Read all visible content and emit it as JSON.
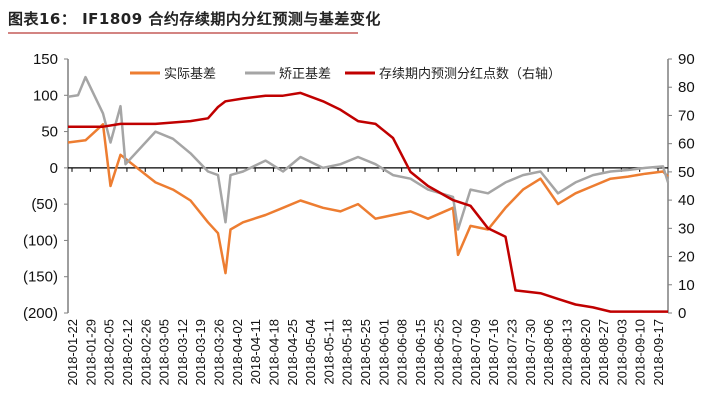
{
  "title": "图表16： IF1809 合约存续期内分红预测与基差变化",
  "chart_data": {
    "type": "line",
    "title": "IF1809 合约存续期内分红预测与基差变化",
    "xlabel": "",
    "ylabel": "",
    "y_left": {
      "ticks": [
        "150",
        "100",
        "50",
        "0",
        "(50)",
        "(100)",
        "(150)",
        "(200)"
      ],
      "range": [
        -200,
        150
      ]
    },
    "y_right": {
      "ticks": [
        "90",
        "80",
        "70",
        "60",
        "50",
        "40",
        "30",
        "20",
        "10",
        "0"
      ],
      "range": [
        0,
        90
      ]
    },
    "x_ticks": [
      "2018-01-22",
      "2018-01-29",
      "2018-02-05",
      "2018-02-12",
      "2018-02-26",
      "2018-03-05",
      "2018-03-12",
      "2018-03-19",
      "2018-03-26",
      "2018-04-02",
      "2018-04-11",
      "2018-04-18",
      "2018-04-25",
      "2018-05-04",
      "2018-05-11",
      "2018-05-18",
      "2018-05-25",
      "2018-06-01",
      "2018-06-08",
      "2018-06-15",
      "2018-06-25",
      "2018-07-02",
      "2018-07-09",
      "2018-07-16",
      "2018-07-23",
      "2018-07-30",
      "2018-08-06",
      "2018-08-13",
      "2018-08-20",
      "2018-08-27",
      "2018-09-03",
      "2018-09-10",
      "2018-09-17"
    ],
    "legend": [
      "实际基差",
      "矫正基差",
      "存续期内预测分红点数（右轴）"
    ],
    "legend_position": "top",
    "grid": false,
    "series": [
      {
        "name": "实际基差",
        "axis": "left",
        "color": "#ed7d31",
        "x": [
          "2018-01-22",
          "2018-01-29",
          "2018-02-05",
          "2018-02-08",
          "2018-02-12",
          "2018-02-26",
          "2018-03-05",
          "2018-03-12",
          "2018-03-19",
          "2018-03-23",
          "2018-03-26",
          "2018-03-28",
          "2018-04-02",
          "2018-04-11",
          "2018-04-18",
          "2018-04-25",
          "2018-05-04",
          "2018-05-11",
          "2018-05-18",
          "2018-05-25",
          "2018-06-01",
          "2018-06-08",
          "2018-06-15",
          "2018-06-25",
          "2018-06-27",
          "2018-07-02",
          "2018-07-09",
          "2018-07-16",
          "2018-07-23",
          "2018-07-30",
          "2018-08-06",
          "2018-08-13",
          "2018-08-20",
          "2018-08-27",
          "2018-09-03",
          "2018-09-10",
          "2018-09-17",
          "2018-09-19"
        ],
        "values": [
          35,
          38,
          60,
          -25,
          18,
          -20,
          -30,
          -45,
          -75,
          -90,
          -145,
          -85,
          -75,
          -65,
          -55,
          -45,
          -55,
          -60,
          -50,
          -70,
          -65,
          -60,
          -70,
          -55,
          -120,
          -80,
          -85,
          -55,
          -30,
          -15,
          -50,
          -35,
          -25,
          -15,
          -12,
          -8,
          -5,
          -12
        ]
      },
      {
        "name": "矫正基差",
        "axis": "left",
        "color": "#a5a5a5",
        "x": [
          "2018-01-22",
          "2018-01-26",
          "2018-01-29",
          "2018-02-05",
          "2018-02-08",
          "2018-02-12",
          "2018-02-14",
          "2018-02-26",
          "2018-03-05",
          "2018-03-12",
          "2018-03-19",
          "2018-03-23",
          "2018-03-26",
          "2018-03-28",
          "2018-04-02",
          "2018-04-11",
          "2018-04-18",
          "2018-04-25",
          "2018-05-04",
          "2018-05-11",
          "2018-05-18",
          "2018-05-25",
          "2018-06-01",
          "2018-06-08",
          "2018-06-15",
          "2018-06-25",
          "2018-06-27",
          "2018-07-02",
          "2018-07-09",
          "2018-07-16",
          "2018-07-23",
          "2018-07-30",
          "2018-08-06",
          "2018-08-13",
          "2018-08-20",
          "2018-08-27",
          "2018-09-03",
          "2018-09-10",
          "2018-09-17",
          "2018-09-19"
        ],
        "values": [
          98,
          100,
          125,
          75,
          35,
          85,
          5,
          50,
          40,
          20,
          -5,
          -10,
          -75,
          -10,
          -5,
          10,
          -5,
          15,
          0,
          5,
          15,
          5,
          -10,
          -15,
          -30,
          -40,
          -85,
          -30,
          -35,
          -20,
          -10,
          -5,
          -35,
          -20,
          -10,
          -5,
          -3,
          0,
          2,
          -20
        ]
      },
      {
        "name": "存续期内预测分红点数（右轴）",
        "axis": "right",
        "color": "#c00000",
        "x": [
          "2018-01-22",
          "2018-02-05",
          "2018-02-12",
          "2018-02-26",
          "2018-03-05",
          "2018-03-12",
          "2018-03-19",
          "2018-03-23",
          "2018-03-26",
          "2018-04-02",
          "2018-04-11",
          "2018-04-18",
          "2018-04-25",
          "2018-05-04",
          "2018-05-11",
          "2018-05-18",
          "2018-05-25",
          "2018-06-01",
          "2018-06-08",
          "2018-06-15",
          "2018-06-25",
          "2018-07-02",
          "2018-07-09",
          "2018-07-16",
          "2018-07-20",
          "2018-07-30",
          "2018-08-06",
          "2018-08-13",
          "2018-08-20",
          "2018-08-27",
          "2018-09-03",
          "2018-09-10",
          "2018-09-17",
          "2018-09-19"
        ],
        "values": [
          66,
          66,
          67,
          67,
          67.5,
          68,
          69,
          73,
          75,
          76,
          77,
          77,
          78,
          75,
          72,
          68,
          67,
          62,
          50,
          45,
          40,
          38,
          30,
          27,
          8,
          7,
          5,
          3,
          2,
          0.5,
          0.5,
          0.5,
          0.5,
          0.5
        ]
      }
    ]
  }
}
